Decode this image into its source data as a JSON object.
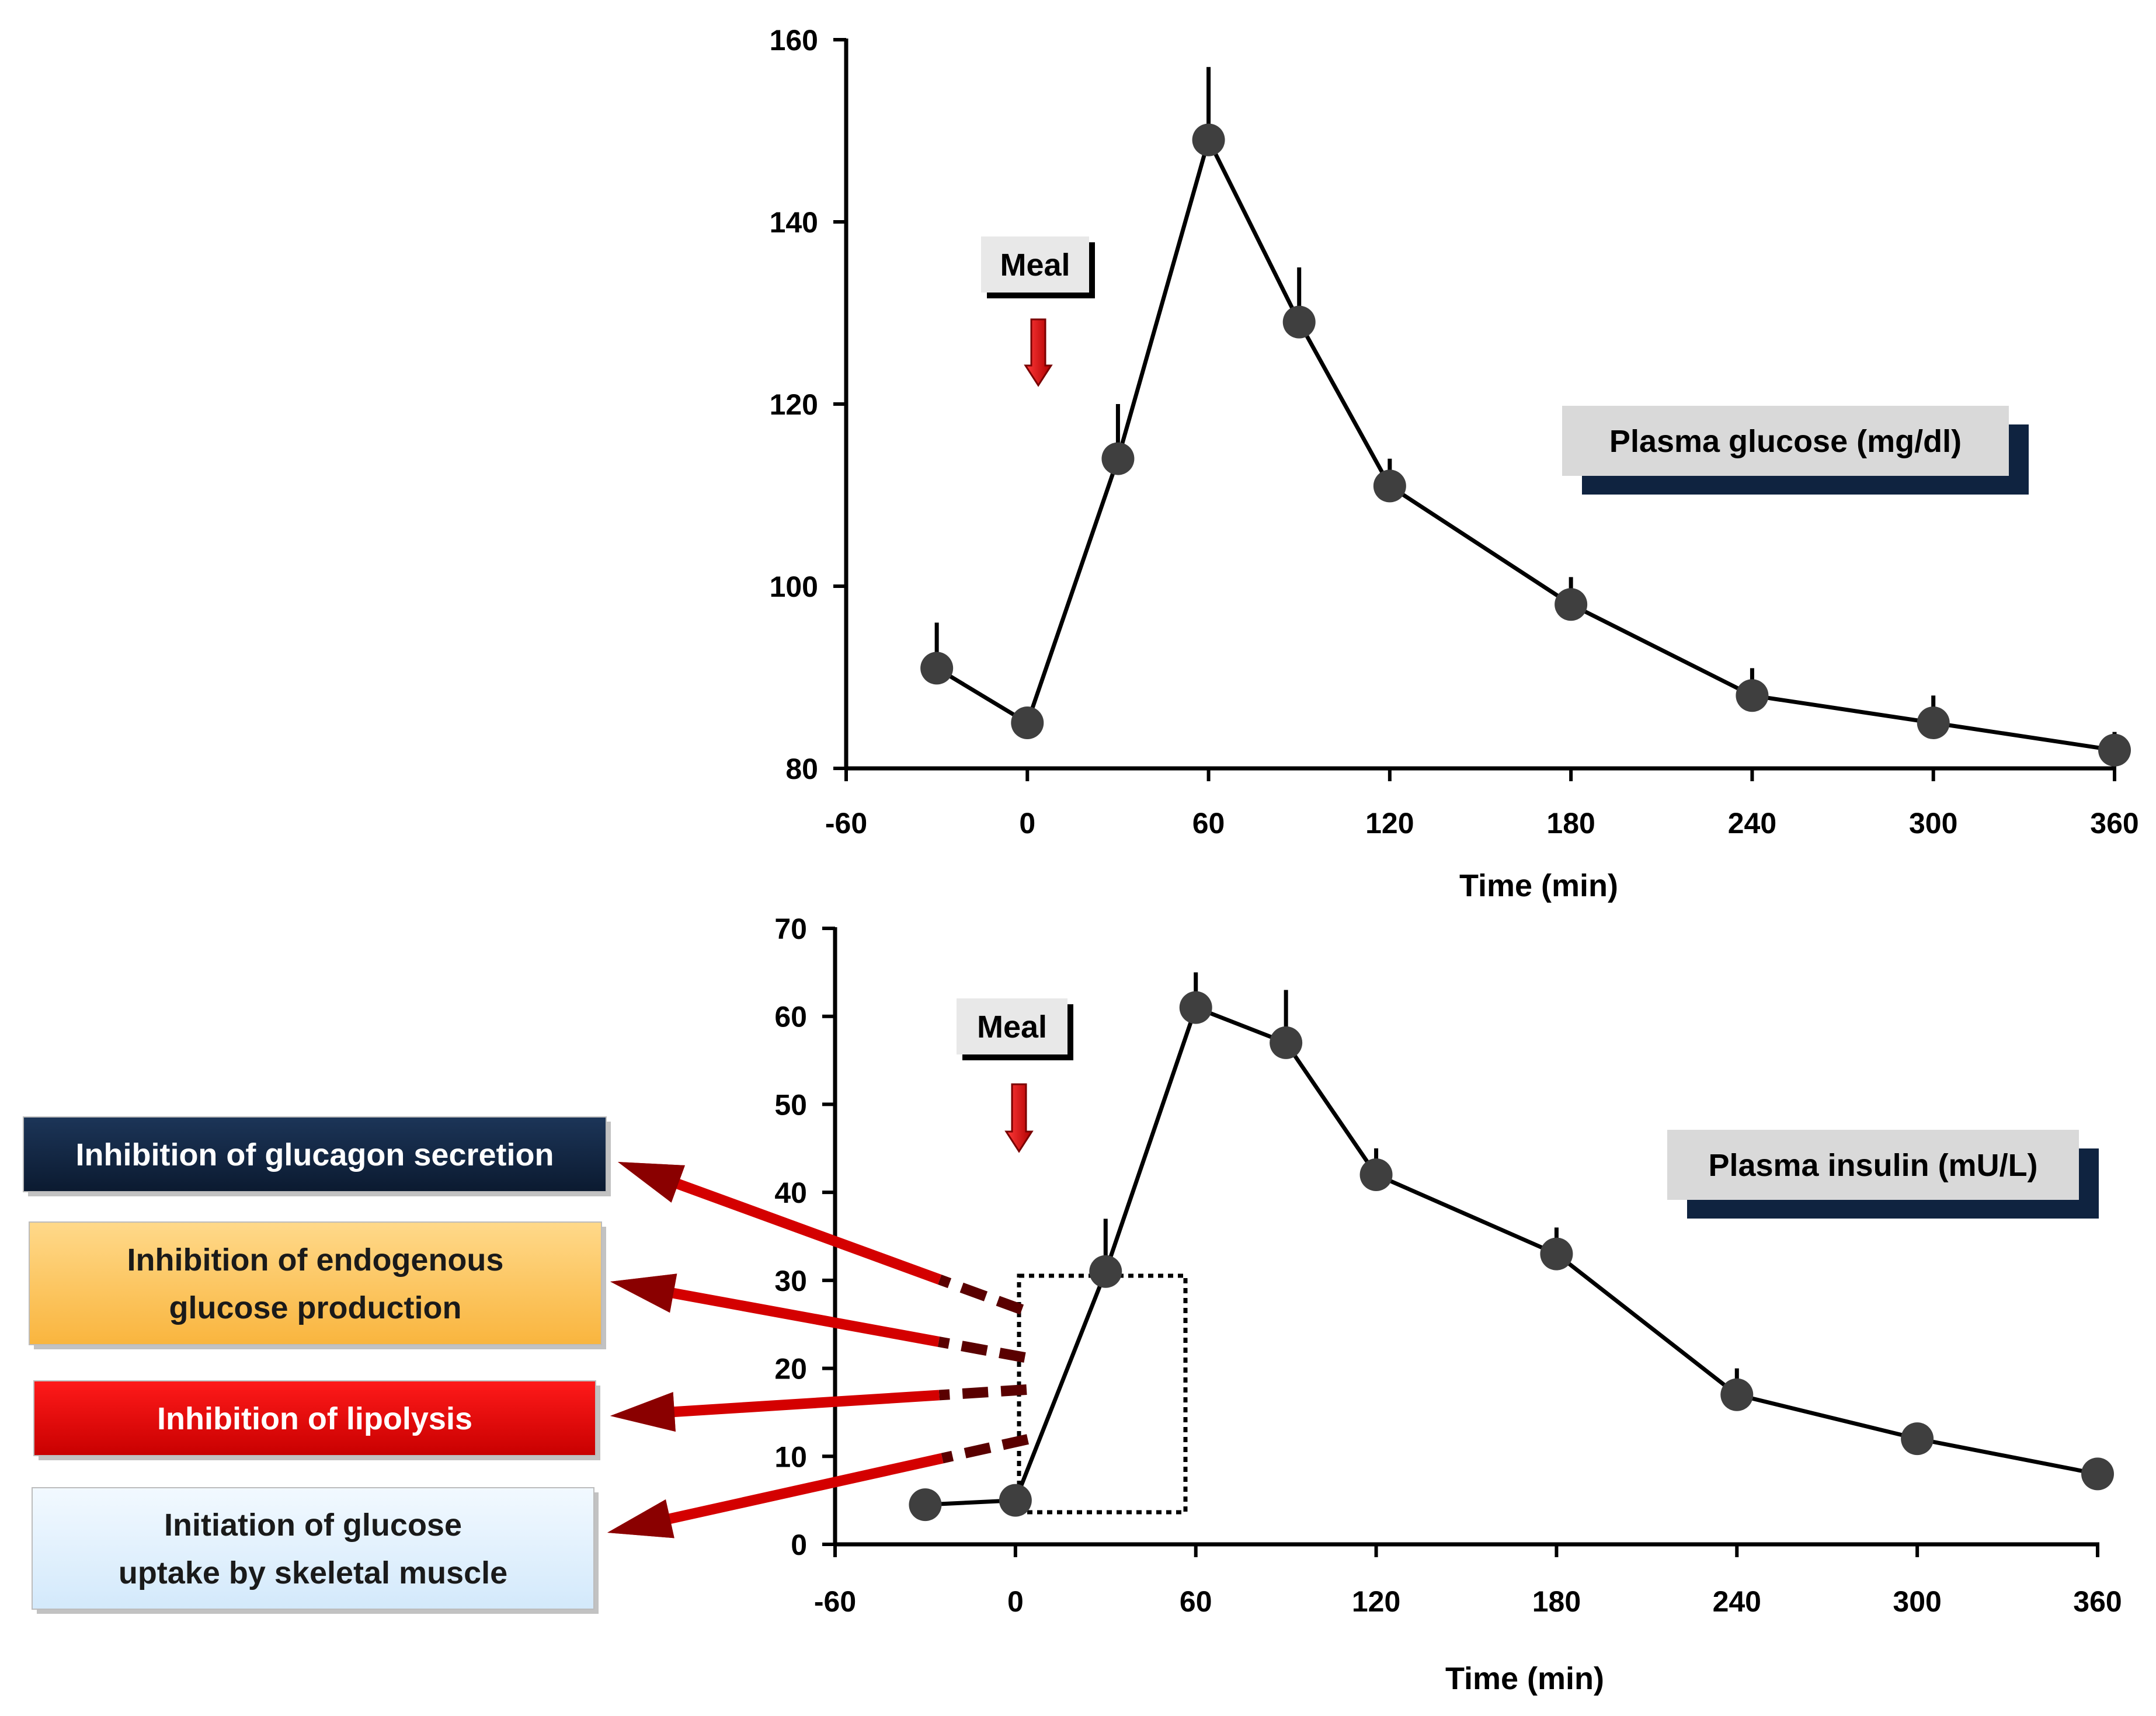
{
  "chart_data": [
    {
      "type": "line",
      "title": "",
      "legend_label": "Plasma glucose (mg/dl)",
      "xlabel": "Time (min)",
      "ylabel": "",
      "xlim": [
        -60,
        360
      ],
      "ylim": [
        80,
        160
      ],
      "x_ticks": [
        "-60",
        "0",
        "60",
        "120",
        "180",
        "240",
        "300",
        "360"
      ],
      "y_ticks": [
        "80",
        "100",
        "120",
        "140",
        "160"
      ],
      "marker_label": "Meal",
      "marker_x": 0,
      "x": [
        -30,
        0,
        30,
        60,
        90,
        120,
        180,
        240,
        300,
        360
      ],
      "values": [
        91,
        85,
        114,
        149,
        129,
        111,
        98,
        88,
        85,
        82
      ],
      "error_upper": [
        96,
        86,
        120,
        157,
        135,
        114,
        101,
        91,
        88,
        84
      ]
    },
    {
      "type": "line",
      "title": "",
      "legend_label": "Plasma insulin (mU/L)",
      "xlabel": "Time (min)",
      "ylabel": "",
      "xlim": [
        -60,
        360
      ],
      "ylim": [
        0,
        70
      ],
      "x_ticks": [
        "-60",
        "0",
        "60",
        "120",
        "180",
        "240",
        "300",
        "360"
      ],
      "y_ticks": [
        "0",
        "10",
        "20",
        "30",
        "40",
        "50",
        "60",
        "70"
      ],
      "marker_label": "Meal",
      "marker_x": 0,
      "x": [
        -30,
        0,
        30,
        60,
        90,
        120,
        180,
        240,
        300,
        360
      ],
      "values": [
        4.5,
        5,
        31,
        61,
        57,
        42,
        33,
        17,
        12,
        8
      ],
      "error_upper": [
        4.5,
        5,
        37,
        65,
        63,
        45,
        36,
        20,
        13,
        9
      ]
    }
  ],
  "effects": [
    {
      "text": "Inhibition of glucagon secretion",
      "bg": "#0f2340",
      "fg": "#ffffff"
    },
    {
      "text": "Inhibition of endogenous glucose production",
      "bg": "#ffc965",
      "fg": "#1a1a1a"
    },
    {
      "text": "Inhibition of lipolysis",
      "bg": "#e30000",
      "fg": "#ffffff"
    },
    {
      "text": "Initiation of glucose uptake by skeletal muscle",
      "bg": "#e0f0fc",
      "fg": "#1a1a1a"
    }
  ],
  "colors": {
    "line": "#000000",
    "marker": "#3f3f3f",
    "arrow": "#d40000",
    "arrow_dark": "#5a0000",
    "label_box": "#d9d9d9",
    "label_shadow": "#0f2340"
  }
}
